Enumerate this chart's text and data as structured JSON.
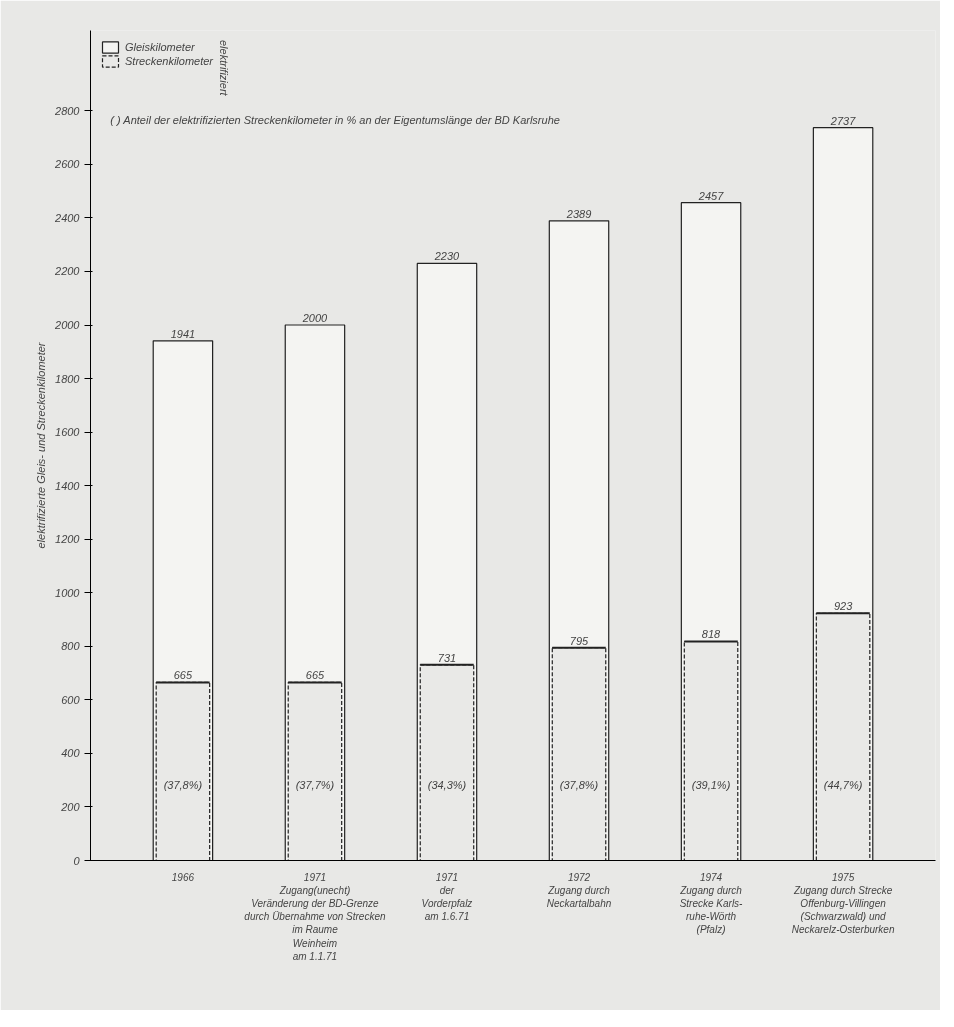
{
  "chart_data": {
    "type": "bar",
    "ylabel": "elektrifizierte Gleis- und Streckenkilometer",
    "legend_title": "elektrifiziert",
    "categories": [
      "1966",
      "1971\nZugang(unecht)\nVeränderung der BD-Grenze\ndurch Übernahme von Strecken\nim Raume\nWeinheim\nam 1.1.71",
      "1971\nder\nVorderpfalz\nam 1.6.71",
      "1972\nZugang durch\nNeckartalbahn",
      "1974\nZugang durch\nStrecke Karls-\nruhe-Wörth\n(Pfalz)",
      "1975\nZugang durch Strecke\nOffenburg-Villingen\n(Schwarzwald) und\nNeckarelz-Osterburken"
    ],
    "series": [
      {
        "name": "Gleiskilometer",
        "color": "#f4f4f2",
        "values": [
          1941,
          2000,
          2230,
          2389,
          2457,
          2737
        ]
      },
      {
        "name": "Streckenkilometer",
        "color": "#e9e9e7",
        "values": [
          665,
          665,
          731,
          795,
          818,
          923
        ]
      }
    ],
    "ylim": [
      0,
      3100
    ],
    "yticks": [
      0,
      200,
      400,
      600,
      800,
      1000,
      1200,
      1400,
      1600,
      1800,
      2000,
      2200,
      2400,
      2600,
      2800
    ],
    "legend": "top left",
    "data_labels": true,
    "annotations": [
      "( ) Anteil der elektrifizierten Streckenkilometer in % an der Eigentumslänge der BD Karlsruhe",
      "(37,8%)",
      "(37,7%)",
      "(34,3%)",
      "(37,8%)",
      "(39,1%)",
      "(44,7%)"
    ]
  }
}
